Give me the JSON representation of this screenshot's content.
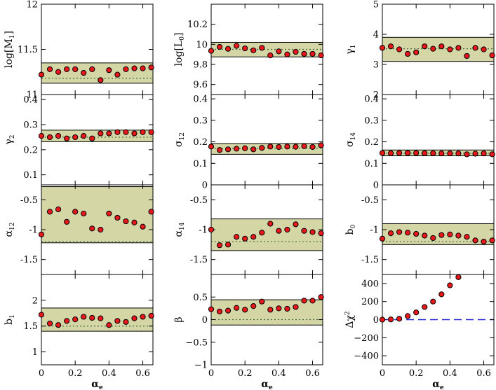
{
  "figure": {
    "x_label": "α",
    "x_label_sub": "e",
    "band_color": "#d4d6a6",
    "point_color": "#e8181a",
    "ref_color": "#3f6a3f",
    "delta_ref_color": "#2727d2"
  },
  "chart_data": [
    {
      "type": "scatter",
      "ylabel": "log[M",
      "ylabel_sub": "1",
      "ylabel_suffix": "]",
      "ylim": [
        11,
        12
      ],
      "yticks": [
        11,
        11.5,
        12
      ],
      "ytick_labels": [
        "11",
        "11.5",
        "12"
      ],
      "show_xticks": false,
      "band": [
        11.125,
        11.35
      ],
      "ref_line": 11.18,
      "x": [
        0,
        0.05,
        0.1,
        0.15,
        0.2,
        0.25,
        0.3,
        0.35,
        0.4,
        0.45,
        0.5,
        0.55,
        0.6,
        0.65
      ],
      "y": [
        11.22,
        11.28,
        11.25,
        11.28,
        11.28,
        11.24,
        11.28,
        11.16,
        11.27,
        11.22,
        11.28,
        11.29,
        11.29,
        11.3
      ]
    },
    {
      "type": "scatter",
      "ylabel": "log[L",
      "ylabel_sub": "0",
      "ylabel_suffix": "]",
      "ylim": [
        9.5,
        10.4
      ],
      "yticks": [
        9.6,
        9.8,
        10,
        10.2
      ],
      "ytick_labels": [
        "9.6",
        "9.8",
        "10",
        "10.2"
      ],
      "show_xticks": false,
      "band": [
        9.875,
        10.02
      ],
      "ref_line": 9.95,
      "x": [
        0,
        0.05,
        0.1,
        0.15,
        0.2,
        0.25,
        0.3,
        0.35,
        0.4,
        0.45,
        0.5,
        0.55,
        0.6,
        0.65
      ],
      "y": [
        9.935,
        9.975,
        9.955,
        9.985,
        9.96,
        9.94,
        9.965,
        9.89,
        9.93,
        9.9,
        9.925,
        9.905,
        9.905,
        9.89
      ]
    },
    {
      "type": "scatter",
      "ylabel": "γ",
      "ylabel_sub": "1",
      "ylabel_suffix": "",
      "ylim": [
        2,
        5
      ],
      "yticks": [
        2,
        3,
        4,
        5
      ],
      "ytick_labels": [
        "2",
        "3",
        "4",
        "5"
      ],
      "show_xticks": false,
      "band": [
        3.1,
        3.9
      ],
      "ref_line": 3.52,
      "x": [
        0,
        0.05,
        0.1,
        0.15,
        0.2,
        0.25,
        0.3,
        0.35,
        0.4,
        0.45,
        0.5,
        0.55,
        0.6,
        0.65
      ],
      "y": [
        3.55,
        3.6,
        3.5,
        3.35,
        3.4,
        3.6,
        3.52,
        3.6,
        3.5,
        3.55,
        3.28,
        3.55,
        3.5,
        3.3
      ]
    },
    {
      "type": "scatter",
      "ylabel": "γ",
      "ylabel_sub": "2",
      "ylabel_suffix": "",
      "ylim": [
        0.06,
        0.42
      ],
      "yticks": [
        0.1,
        0.2,
        0.3,
        0.4
      ],
      "ytick_labels": [
        "0.1",
        "0.2",
        "0.3",
        "0.4"
      ],
      "show_xticks": false,
      "band": [
        0.232,
        0.278
      ],
      "ref_line": 0.25,
      "x": [
        0,
        0.05,
        0.1,
        0.15,
        0.2,
        0.25,
        0.3,
        0.35,
        0.4,
        0.45,
        0.5,
        0.55,
        0.6,
        0.65
      ],
      "y": [
        0.255,
        0.25,
        0.255,
        0.245,
        0.25,
        0.255,
        0.245,
        0.265,
        0.265,
        0.27,
        0.27,
        0.265,
        0.27,
        0.27
      ]
    },
    {
      "type": "scatter",
      "ylabel": "σ",
      "ylabel_sub": "12",
      "ylabel_suffix": "",
      "ylim": [
        0,
        0.42
      ],
      "yticks": [
        0,
        0.1,
        0.2,
        0.3,
        0.4
      ],
      "ytick_labels": [
        "0",
        "0.1",
        "0.2",
        "0.3",
        "0.4"
      ],
      "show_xticks": false,
      "band": [
        0.142,
        0.192
      ],
      "ref_line": 0.17,
      "x": [
        0,
        0.05,
        0.1,
        0.15,
        0.2,
        0.25,
        0.3,
        0.35,
        0.4,
        0.45,
        0.5,
        0.55,
        0.6,
        0.65
      ],
      "y": [
        0.178,
        0.162,
        0.165,
        0.168,
        0.17,
        0.165,
        0.172,
        0.178,
        0.176,
        0.178,
        0.177,
        0.18,
        0.176,
        0.184
      ]
    },
    {
      "type": "scatter",
      "ylabel": "σ",
      "ylabel_sub": "14",
      "ylabel_suffix": "",
      "ylim": [
        0,
        0.42
      ],
      "yticks": [
        0,
        0.1,
        0.2,
        0.3,
        0.4
      ],
      "ytick_labels": [
        "0",
        "0.1",
        "0.2",
        "0.3",
        "0.4"
      ],
      "show_xticks": false,
      "band": [
        0.135,
        0.162
      ],
      "ref_line": 0.147,
      "x": [
        0,
        0.05,
        0.1,
        0.15,
        0.2,
        0.25,
        0.3,
        0.35,
        0.4,
        0.45,
        0.5,
        0.55,
        0.6,
        0.65
      ],
      "y": [
        0.148,
        0.147,
        0.148,
        0.148,
        0.148,
        0.147,
        0.147,
        0.146,
        0.146,
        0.146,
        0.142,
        0.145,
        0.146,
        0.142
      ]
    },
    {
      "type": "scatter",
      "ylabel": "α",
      "ylabel_sub": "12",
      "ylabel_suffix": "",
      "ylim": [
        -1.75,
        -0.25
      ],
      "yticks": [
        -1.5,
        -1,
        -0.5
      ],
      "ytick_labels": [
        "-1.5",
        "-1",
        "-0.5"
      ],
      "show_xticks": false,
      "band": [
        -1.22,
        -0.28
      ],
      "ref_line": -1.2,
      "x": [
        0,
        0.05,
        0.1,
        0.15,
        0.2,
        0.25,
        0.3,
        0.35,
        0.4,
        0.45,
        0.5,
        0.55,
        0.6,
        0.65
      ],
      "y": [
        -1.08,
        -0.7,
        -0.66,
        -0.87,
        -0.7,
        -0.73,
        -0.98,
        -1.0,
        -0.73,
        -0.8,
        -0.86,
        -0.88,
        -0.95,
        -0.7
      ]
    },
    {
      "type": "scatter",
      "ylabel": "α",
      "ylabel_sub": "14",
      "ylabel_suffix": "",
      "ylim": [
        -1.75,
        -0.25
      ],
      "yticks": [
        -1.5,
        -1,
        -0.5
      ],
      "ytick_labels": [
        "-1.5",
        "-1",
        "-0.5"
      ],
      "show_xticks": false,
      "band": [
        -1.35,
        -0.82
      ],
      "ref_line": -1.2,
      "x": [
        0,
        0.05,
        0.1,
        0.15,
        0.2,
        0.25,
        0.3,
        0.35,
        0.4,
        0.45,
        0.5,
        0.55,
        0.6,
        0.65
      ],
      "y": [
        -1.0,
        -1.26,
        -1.25,
        -1.12,
        -1.15,
        -1.12,
        -1.05,
        -0.9,
        -1.02,
        -1.0,
        -0.91,
        -1.02,
        -1.04,
        -1.06
      ]
    },
    {
      "type": "scatter",
      "ylabel": "b",
      "ylabel_sub": "0",
      "ylabel_suffix": "",
      "ylim": [
        -1.75,
        -0.25
      ],
      "yticks": [
        -1.5,
        -1,
        -0.5
      ],
      "ytick_labels": [
        "-1.5",
        "-1",
        "-0.5"
      ],
      "show_xticks": false,
      "band": [
        -1.25,
        -0.9
      ],
      "ref_line": -1.2,
      "x": [
        0,
        0.05,
        0.1,
        0.15,
        0.2,
        0.25,
        0.3,
        0.35,
        0.4,
        0.45,
        0.5,
        0.55,
        0.6,
        0.65
      ],
      "y": [
        -1.15,
        -1.06,
        -1.04,
        -1.05,
        -1.07,
        -1.1,
        -1.14,
        -1.09,
        -1.08,
        -1.1,
        -1.12,
        -1.18,
        -1.2,
        -1.18
      ]
    },
    {
      "type": "scatter",
      "ylabel": "b",
      "ylabel_sub": "1",
      "ylabel_suffix": "",
      "ylim": [
        0.75,
        2.5
      ],
      "yticks": [
        1,
        1.5,
        2
      ],
      "ytick_labels": [
        "1",
        "1.5",
        "2"
      ],
      "show_xticks": true,
      "xticks": [
        0,
        0.2,
        0.4,
        0.6
      ],
      "xtick_labels": [
        "0",
        "0.2",
        "0.4",
        "0.6"
      ],
      "band": [
        1.4,
        1.85
      ],
      "ref_line": 1.5,
      "x": [
        0,
        0.05,
        0.1,
        0.15,
        0.2,
        0.25,
        0.3,
        0.35,
        0.4,
        0.45,
        0.5,
        0.55,
        0.6,
        0.65
      ],
      "y": [
        1.72,
        1.55,
        1.52,
        1.6,
        1.63,
        1.68,
        1.66,
        1.65,
        1.52,
        1.6,
        1.58,
        1.65,
        1.68,
        1.7
      ]
    },
    {
      "type": "scatter",
      "ylabel": "β",
      "ylabel_sub": "",
      "ylabel_suffix": "",
      "ylim": [
        -1,
        1
      ],
      "yticks": [
        -1,
        -0.5,
        0,
        0.5
      ],
      "ytick_labels": [
        "−1",
        "−0.5",
        "0",
        "0.5"
      ],
      "show_xticks": true,
      "xticks": [
        0,
        0.2,
        0.4,
        0.6
      ],
      "xtick_labels": [
        "0",
        "0.2",
        "0.4",
        "0.6"
      ],
      "band": [
        -0.12,
        0.44
      ],
      "ref_line": 0.0,
      "x": [
        0,
        0.05,
        0.1,
        0.15,
        0.2,
        0.25,
        0.3,
        0.35,
        0.4,
        0.45,
        0.5,
        0.55,
        0.6,
        0.65
      ],
      "y": [
        0.23,
        0.18,
        0.2,
        0.26,
        0.22,
        0.3,
        0.4,
        0.22,
        0.25,
        0.24,
        0.28,
        0.42,
        0.42,
        0.5
      ]
    },
    {
      "type": "scatter",
      "ylabel": "Δχ",
      "ylabel_sub": "",
      "ylabel_sup": "2",
      "ylabel_suffix": "",
      "ylim": [
        -500,
        500
      ],
      "yticks": [
        -400,
        -200,
        0,
        200,
        400
      ],
      "ytick_labels": [
        "−400",
        "−200",
        "0",
        "200",
        "400"
      ],
      "show_xticks": true,
      "xticks": [
        0,
        0.2,
        0.4,
        0.6
      ],
      "xtick_labels": [
        "0",
        "0.2",
        "0.4",
        "0.6"
      ],
      "band": null,
      "ref_line": 0,
      "ref_style": "dashed",
      "x": [
        0,
        0.05,
        0.1,
        0.15,
        0.2,
        0.25,
        0.3,
        0.35,
        0.4,
        0.45
      ],
      "y": [
        0,
        2,
        10,
        40,
        80,
        140,
        200,
        280,
        380,
        470
      ]
    }
  ]
}
